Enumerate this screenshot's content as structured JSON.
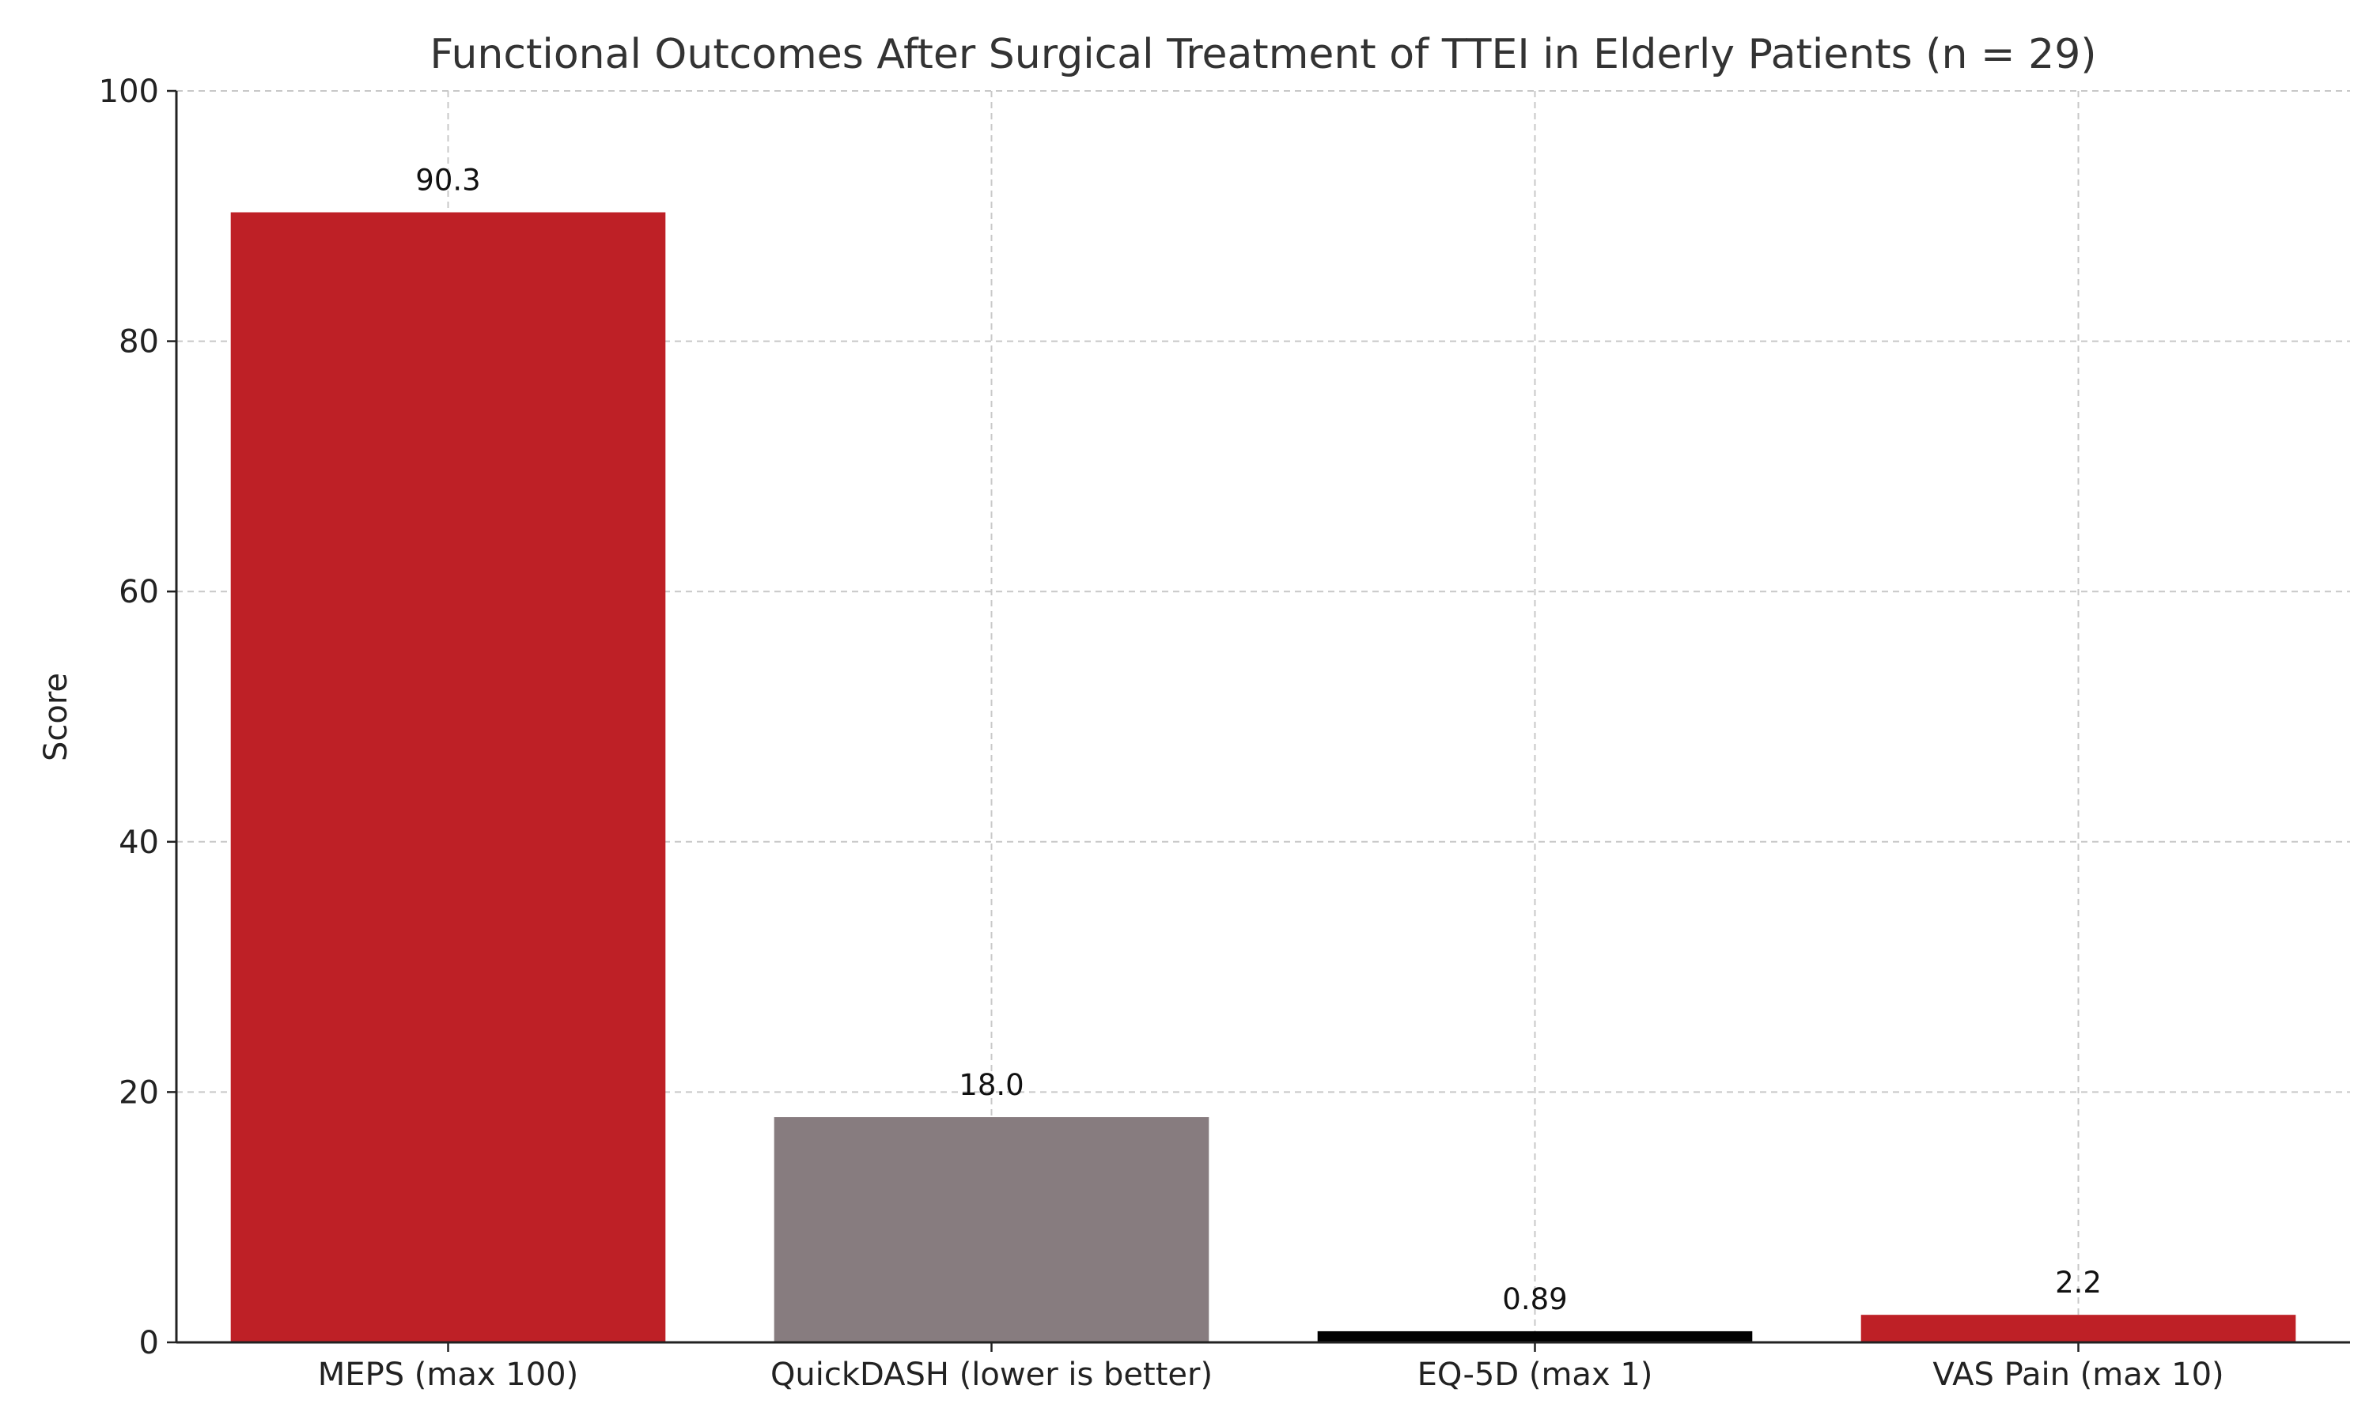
{
  "chart_data": {
    "type": "bar",
    "title": "Functional Outcomes After Surgical Treatment of TTEI in Elderly Patients (n = 29)",
    "xlabel": "",
    "ylabel": "Score",
    "ylim": [
      0,
      100
    ],
    "yticks": [
      0,
      20,
      40,
      60,
      80,
      100
    ],
    "grid": true,
    "categories": [
      "MEPS (max 100)",
      "QuickDASH (lower is better)",
      "EQ-5D (max 1)",
      "VAS Pain (max 10)"
    ],
    "values": [
      90.3,
      18.0,
      0.89,
      2.2
    ],
    "value_labels": [
      "90.3",
      "18.0",
      "0.89",
      "2.2"
    ],
    "colors": [
      "#be2026",
      "#877c7f",
      "#000000",
      "#be2026"
    ]
  }
}
